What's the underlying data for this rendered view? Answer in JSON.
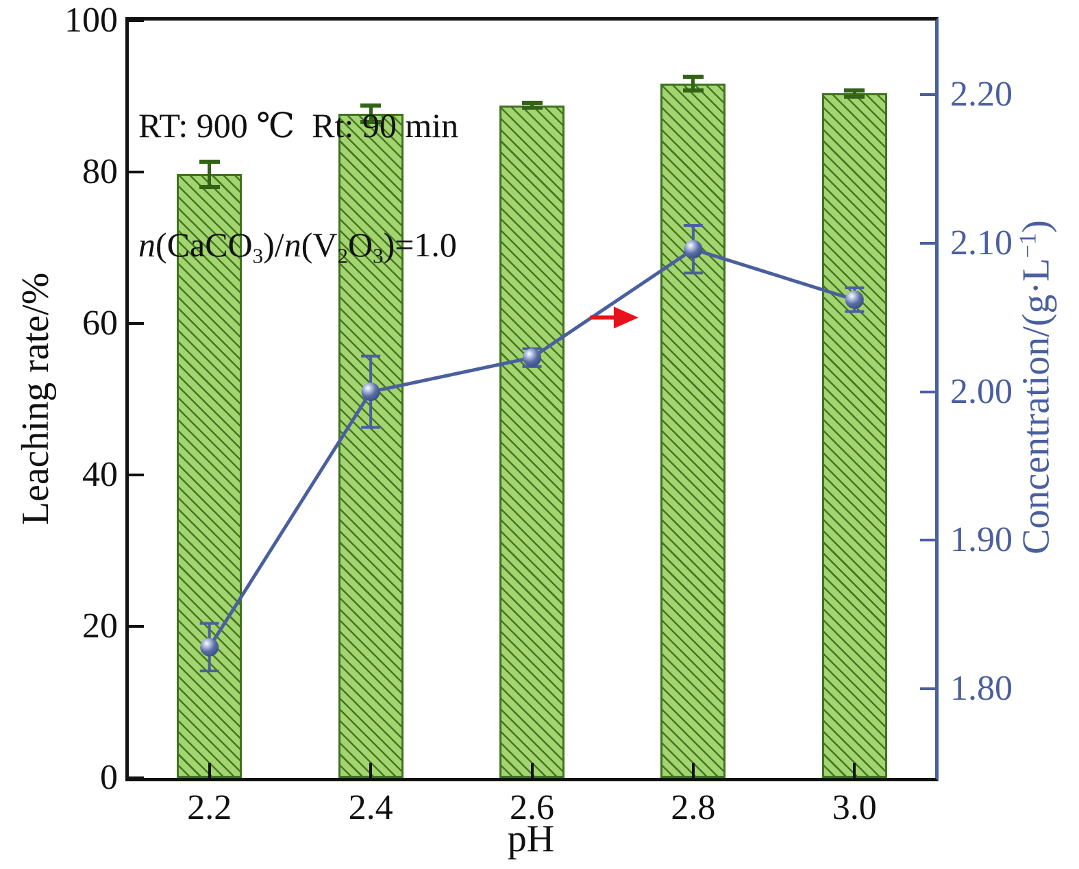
{
  "figure": {
    "annotation": {
      "line1": "RT: 900 ℃  Rt: 90 min",
      "line2_segments": [
        {
          "t": "n",
          "i": true
        },
        {
          "t": "(CaCO"
        },
        {
          "t": "3",
          "sub": true
        },
        {
          "t": ")/"
        },
        {
          "t": "n",
          "i": true
        },
        {
          "t": "(V"
        },
        {
          "t": "2",
          "sub": true
        },
        {
          "t": "O"
        },
        {
          "t": "3",
          "sub": true
        },
        {
          "t": ")=1.0"
        }
      ]
    },
    "x_axis": {
      "label": "pH",
      "tick_labels": [
        "2.2",
        "2.4",
        "2.6",
        "2.8",
        "3.0"
      ]
    },
    "left_axis": {
      "label": "Leaching rate/%",
      "min": 0,
      "max": 100,
      "ticks": [
        0,
        20,
        40,
        60,
        80,
        100
      ],
      "tick_labels": [
        "0",
        "20",
        "40",
        "60",
        "80",
        "100"
      ]
    },
    "right_axis": {
      "label_segments": [
        {
          "t": "Concentration/(g·L"
        },
        {
          "t": "−1",
          "sup": true
        },
        {
          "t": ")"
        }
      ],
      "min": 1.74,
      "max": 2.25,
      "ticks": [
        1.8,
        1.9,
        2.0,
        2.1,
        2.2
      ],
      "tick_labels": [
        "1.80",
        "1.90",
        "2.00",
        "2.10",
        "2.20"
      ]
    },
    "colors": {
      "bar_fill": "#a3d46f",
      "bar_edge": "#3f731f",
      "bar_error": "#336316",
      "line_blue": "#4a5f9e",
      "axis_black": "#111111",
      "arrow_red": "#e8121a"
    }
  },
  "chart_data": {
    "type": "bar",
    "subtype": "dual-axis bar + line with error bars",
    "x": [
      2.2,
      2.4,
      2.6,
      2.8,
      3.0
    ],
    "xlabel": "pH",
    "series": [
      {
        "name": "Leaching rate",
        "type": "bar",
        "axis": "left",
        "ylabel": "Leaching rate/%",
        "ylim": [
          0,
          100
        ],
        "values": [
          79.7,
          87.7,
          88.8,
          91.7,
          90.4
        ],
        "errors": [
          1.7,
          1.1,
          0.3,
          0.9,
          0.4
        ]
      },
      {
        "name": "Concentration",
        "type": "line",
        "axis": "right",
        "ylabel": "Concentration/(g·L−1)",
        "ylim": [
          1.74,
          2.25
        ],
        "values": [
          1.828,
          2.0,
          2.023,
          2.096,
          2.062
        ],
        "errors": [
          0.016,
          0.024,
          0.006,
          0.016,
          0.008
        ]
      }
    ],
    "arrow_annotation": {
      "x_start": 2.672,
      "x_end": 2.732,
      "y_right_axis": 2.05
    },
    "grid": false,
    "legend": false
  }
}
